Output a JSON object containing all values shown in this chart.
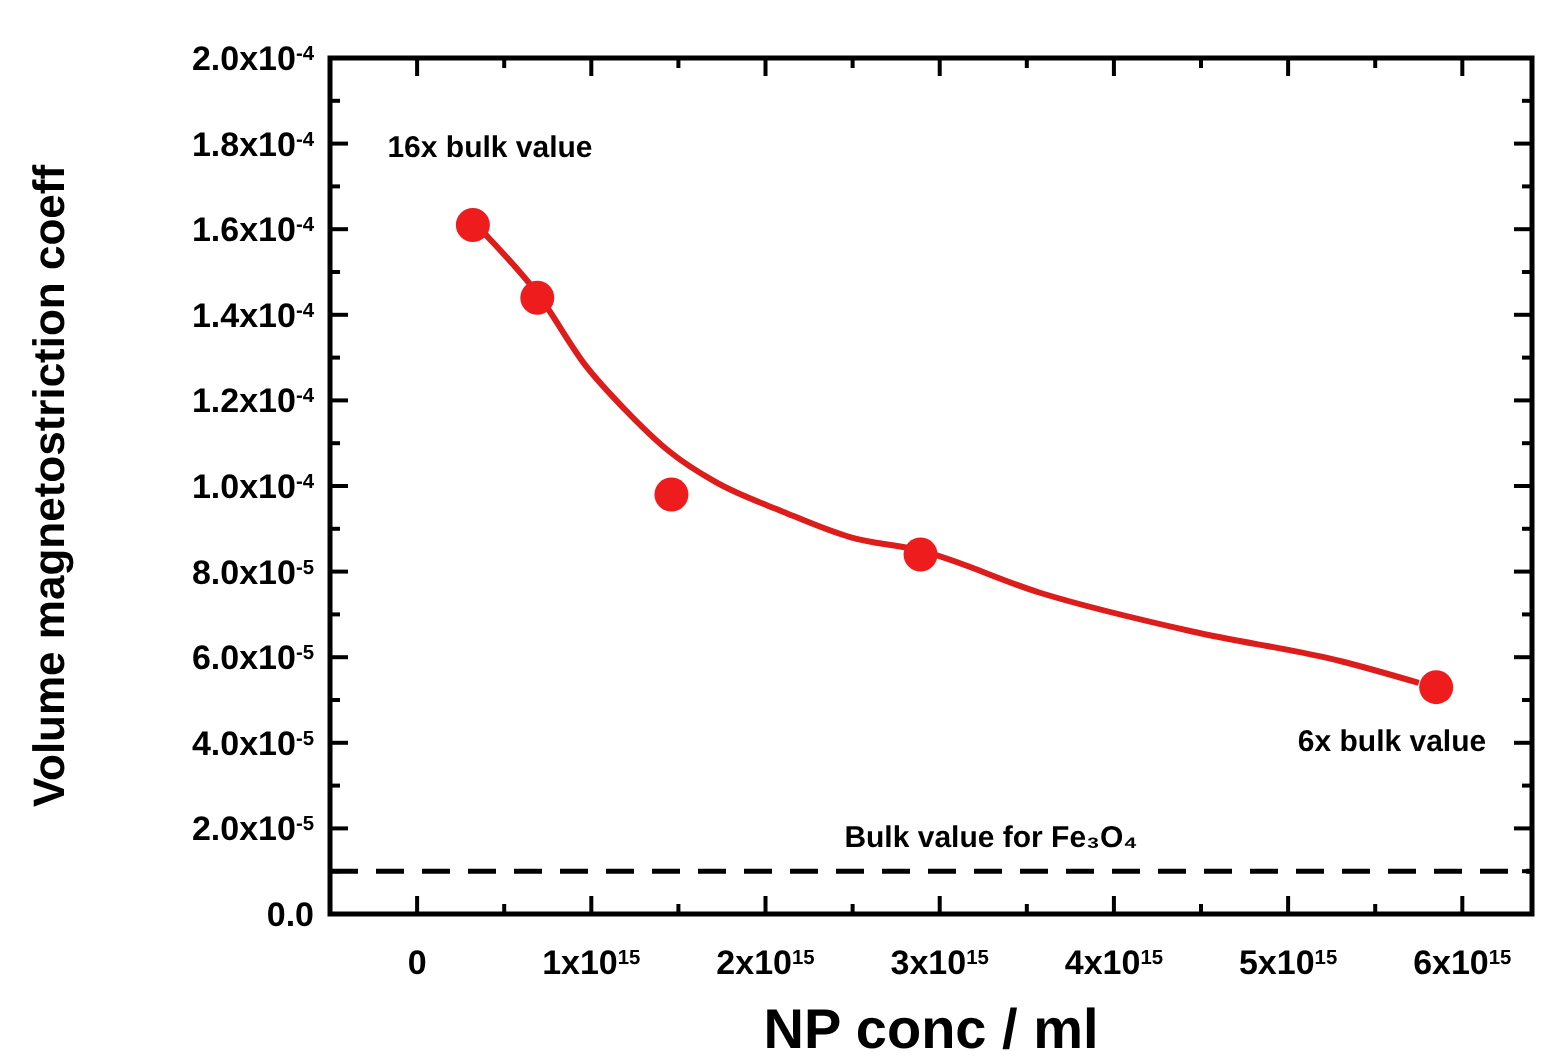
{
  "chart_data": {
    "type": "scatter",
    "xlabel": "NP conc / ml",
    "ylabel": "Volume magnetostriction coeff",
    "xlim": [
      -500000000000000.0,
      6400000000000000.0
    ],
    "ylim": [
      0,
      0.0002
    ],
    "xticks": [
      {
        "value": 0,
        "label": "0"
      },
      {
        "value": 500000000000000.0,
        "label": null
      },
      {
        "value": 1000000000000000.0,
        "label": "1x10$^{15}$"
      },
      {
        "value": 1500000000000000.0,
        "label": null
      },
      {
        "value": 2000000000000000.0,
        "label": "2x10$^{15}$"
      },
      {
        "value": 2500000000000000.0,
        "label": null
      },
      {
        "value": 3000000000000000.0,
        "label": "3x10$^{15}$"
      },
      {
        "value": 3500000000000000.0,
        "label": null
      },
      {
        "value": 4000000000000000.0,
        "label": "4x10$^{15}$"
      },
      {
        "value": 4500000000000000.0,
        "label": null
      },
      {
        "value": 5000000000000000.0,
        "label": "5x10$^{15}$"
      },
      {
        "value": 5500000000000000.0,
        "label": null
      },
      {
        "value": 6000000000000000.0,
        "label": "6x10$^{15}$"
      }
    ],
    "yticks": [
      {
        "value": 0,
        "label": "0.0"
      },
      {
        "value": 1e-05,
        "label": null
      },
      {
        "value": 2e-05,
        "label": "2.0x10$^{-5}$"
      },
      {
        "value": 3e-05,
        "label": null
      },
      {
        "value": 4e-05,
        "label": "4.0x10$^{-5}$"
      },
      {
        "value": 5e-05,
        "label": null
      },
      {
        "value": 6e-05,
        "label": "6.0x10$^{-5}$"
      },
      {
        "value": 7e-05,
        "label": null
      },
      {
        "value": 8e-05,
        "label": "8.0x10$^{-5}$"
      },
      {
        "value": 9e-05,
        "label": null
      },
      {
        "value": 0.0001,
        "label": "1.0x10$^{-4}$"
      },
      {
        "value": 0.00011,
        "label": null
      },
      {
        "value": 0.00012,
        "label": "1.2x10$^{-4}$"
      },
      {
        "value": 0.00013,
        "label": null
      },
      {
        "value": 0.00014,
        "label": "1.4x10$^{-4}$"
      },
      {
        "value": 0.00015,
        "label": null
      },
      {
        "value": 0.00016,
        "label": "1.6x10$^{-4}$"
      },
      {
        "value": 0.00017,
        "label": null
      },
      {
        "value": 0.00018,
        "label": "1.8x10$^{-4}$"
      },
      {
        "value": 0.00019,
        "label": null
      },
      {
        "value": 0.0002,
        "label": "2.0x10$^{-4}$"
      }
    ],
    "grid": false,
    "marker": "circle",
    "series": [
      {
        "color": "#ee1c1c",
        "x": [
          320000000000000.0,
          690000000000000.0,
          1460000000000000.0,
          2890000000000000.0,
          5850000000000000.0
        ],
        "values": [
          0.000161,
          0.000144,
          9.8e-05,
          8.4e-05,
          5.3e-05
        ]
      },
      {
        "type": "line",
        "color": "#dd1c1c",
        "marker": "none",
        "line_style": "solid",
        "x": [
          340000000000000.0,
          410000000000000.0,
          690000000000000.0,
          970000000000000.0,
          1190000000000000.0,
          1450000000000000.0,
          1710000000000000.0,
          2100000000000000.0,
          2490000000000000.0,
          2880000000000000.0,
          3580000000000000.0,
          4450000000000000.0,
          5310000000000000.0,
          5750000000000000.0
        ],
        "values": [
          0.000161,
          0.000158,
          0.000145,
          0.000128,
          0.000118,
          0.000108,
          0.000101,
          9.4e-05,
          8.8e-05,
          8.5e-05,
          7.5e-05,
          6.6e-05,
          5.9e-05,
          5.4e-05
        ]
      }
    ],
    "ref_lines": [
      {
        "axis": "y",
        "value": 1e-05,
        "label": "Bulk value for Fe₃O₄",
        "color": "#000000",
        "line_style": "dashed"
      }
    ],
    "annotations": [
      {
        "text": "16x bulk value",
        "x": 320000000000000.0,
        "y": 0.000161
      },
      {
        "text": "6x bulk value",
        "x": 5850000000000000.0,
        "y": 5.3e-05
      }
    ]
  }
}
